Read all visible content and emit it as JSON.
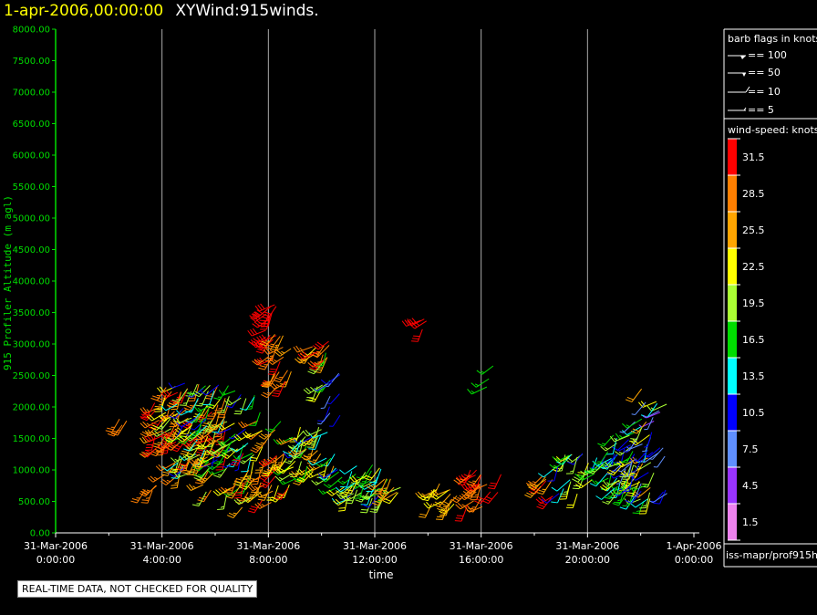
{
  "title": {
    "date": "1-apr-2006,00:00:00",
    "main": "XYWind:915winds."
  },
  "qc_note": "REAL-TIME DATA, NOT CHECKED FOR QUALITY",
  "legend": {
    "barb_header": "barb flags in knots",
    "barbs": [
      "== 100",
      "== 50",
      "== 10",
      "== 5"
    ],
    "speed_header": "wind-speed: knots",
    "speed_bins": [
      {
        "label": "31.5",
        "color": "#ff0000"
      },
      {
        "label": "28.5",
        "color": "#ff7f00"
      },
      {
        "label": "25.5",
        "color": "#ffa500"
      },
      {
        "label": "22.5",
        "color": "#ffff00"
      },
      {
        "label": "19.5",
        "color": "#aaff33"
      },
      {
        "label": "16.5",
        "color": "#00dd00"
      },
      {
        "label": "13.5",
        "color": "#00ffff"
      },
      {
        "label": "10.5",
        "color": "#0000ff"
      },
      {
        "label": "7.5",
        "color": "#5f8fff"
      },
      {
        "label": "4.5",
        "color": "#9933ff"
      },
      {
        "label": "1.5",
        "color": "#ee82ee"
      }
    ],
    "source": "iss-mapr/prof915h"
  },
  "chart_data": {
    "type": "scatter",
    "xlabel": "time",
    "ylabel": "915 Profiler Altitude (m agl)",
    "xlim": [
      0,
      24
    ],
    "ylim": [
      0,
      8000
    ],
    "x_ticks": [
      {
        "value": 0,
        "line1": "31-Mar-2006",
        "line2": "0:00:00"
      },
      {
        "value": 4,
        "line1": "31-Mar-2006",
        "line2": "4:00:00"
      },
      {
        "value": 8,
        "line1": "31-Mar-2006",
        "line2": "8:00:00"
      },
      {
        "value": 12,
        "line1": "31-Mar-2006",
        "line2": "12:00:00"
      },
      {
        "value": 16,
        "line1": "31-Mar-2006",
        "line2": "16:00:00"
      },
      {
        "value": 20,
        "line1": "31-Mar-2006",
        "line2": "20:00:00"
      },
      {
        "value": 24,
        "line1": "1-Apr-2006",
        "line2": "0:00:00"
      }
    ],
    "y_ticks": [
      "0.00",
      "500.00",
      "1000.00",
      "1500.00",
      "2000.00",
      "2500.00",
      "3000.00",
      "3500.00",
      "4000.00",
      "4500.00",
      "5000.00",
      "5500.00",
      "6000.00",
      "6500.00",
      "7000.00",
      "7500.00",
      "8000.00"
    ],
    "grid_x": true,
    "clusters": [
      {
        "t0": 2.4,
        "t1": 2.7,
        "a0": 1700,
        "a1": 2000,
        "s0": 27,
        "s1": 30,
        "n": 3
      },
      {
        "t0": 3.3,
        "t1": 3.8,
        "a0": 650,
        "a1": 900,
        "s0": 27,
        "s1": 30,
        "n": 4
      },
      {
        "t0": 3.7,
        "t1": 5.0,
        "a0": 1300,
        "a1": 2300,
        "s0": 25,
        "s1": 33,
        "n": 30
      },
      {
        "t0": 4.0,
        "t1": 6.5,
        "a0": 900,
        "a1": 2400,
        "s0": 18,
        "s1": 33,
        "n": 60
      },
      {
        "t0": 4.5,
        "t1": 7.5,
        "a0": 1000,
        "a1": 2400,
        "s0": 9,
        "s1": 23,
        "n": 70
      },
      {
        "t0": 5.0,
        "t1": 8.5,
        "a0": 600,
        "a1": 2000,
        "s0": 14,
        "s1": 30,
        "n": 60
      },
      {
        "t0": 7.0,
        "t1": 8.8,
        "a0": 400,
        "a1": 1300,
        "s0": 20,
        "s1": 32,
        "n": 25
      },
      {
        "t0": 7.9,
        "t1": 8.3,
        "a0": 3000,
        "a1": 3800,
        "s0": 30,
        "s1": 33,
        "n": 16
      },
      {
        "t0": 8.0,
        "t1": 8.9,
        "a0": 2300,
        "a1": 3200,
        "s0": 26,
        "s1": 32,
        "n": 20
      },
      {
        "t0": 8.8,
        "t1": 10.5,
        "a0": 800,
        "a1": 1700,
        "s0": 10,
        "s1": 28,
        "n": 45
      },
      {
        "t0": 9.6,
        "t1": 10.6,
        "a0": 2700,
        "a1": 3100,
        "s0": 22,
        "s1": 32,
        "n": 12
      },
      {
        "t0": 9.8,
        "t1": 10.4,
        "a0": 2300,
        "a1": 2900,
        "s0": 15,
        "s1": 22,
        "n": 8
      },
      {
        "t0": 10.3,
        "t1": 10.7,
        "a0": 1800,
        "a1": 2600,
        "s0": 8,
        "s1": 12,
        "n": 8
      },
      {
        "t0": 10.5,
        "t1": 12.5,
        "a0": 500,
        "a1": 1100,
        "s0": 11,
        "s1": 22,
        "n": 40
      },
      {
        "t0": 12.0,
        "t1": 13.0,
        "a0": 600,
        "a1": 900,
        "s0": 18,
        "s1": 28,
        "n": 10
      },
      {
        "t0": 13.6,
        "t1": 14.1,
        "a0": 3200,
        "a1": 3400,
        "s0": 30,
        "s1": 33,
        "n": 4
      },
      {
        "t0": 14.1,
        "t1": 15.2,
        "a0": 400,
        "a1": 800,
        "s0": 22,
        "s1": 29,
        "n": 14
      },
      {
        "t0": 15.2,
        "t1": 16.8,
        "a0": 400,
        "a1": 1000,
        "s0": 27,
        "s1": 33,
        "n": 22
      },
      {
        "t0": 16.2,
        "t1": 16.5,
        "a0": 2300,
        "a1": 2700,
        "s0": 16,
        "s1": 18,
        "n": 3
      },
      {
        "t0": 18.2,
        "t1": 18.8,
        "a0": 500,
        "a1": 900,
        "s0": 26,
        "s1": 32,
        "n": 8
      },
      {
        "t0": 18.8,
        "t1": 20.5,
        "a0": 600,
        "a1": 1300,
        "s0": 10,
        "s1": 24,
        "n": 25
      },
      {
        "t0": 20.5,
        "t1": 21.8,
        "a0": 700,
        "a1": 1600,
        "s0": 8,
        "s1": 20,
        "n": 35
      },
      {
        "t0": 21.0,
        "t1": 22.5,
        "a0": 500,
        "a1": 1200,
        "s0": 14,
        "s1": 25,
        "n": 35
      },
      {
        "t0": 21.5,
        "t1": 23.0,
        "a0": 600,
        "a1": 1800,
        "s0": 5,
        "s1": 14,
        "n": 25
      },
      {
        "t0": 22.0,
        "t1": 23.0,
        "a0": 1500,
        "a1": 2300,
        "s0": 4,
        "s1": 30,
        "n": 12
      }
    ]
  }
}
